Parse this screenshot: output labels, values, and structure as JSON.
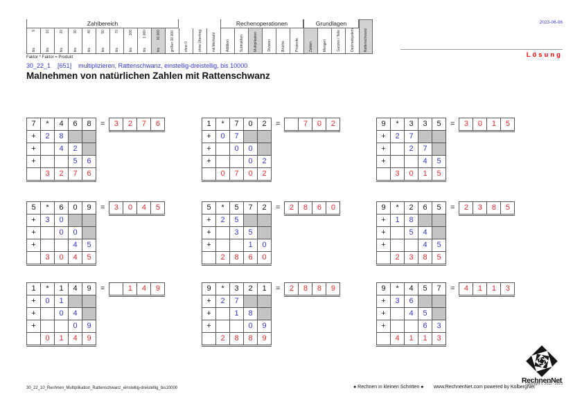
{
  "header": {
    "date": "2023-06-06",
    "solution_label": "Lösung",
    "formula_note": "Faktor * Faktor = Produkt",
    "code_line": {
      "code": "30_22_1",
      "ref": "[651]",
      "desc": "multiplizieren, Rattenschwanz, einstellig-dreistellig, bis 10000"
    },
    "title": "Malnehmen von natürlichen Zahlen mit Rattenschwanz"
  },
  "criteria": {
    "bis_label": "bis",
    "groups": [
      {
        "label": "Zahlbereich",
        "span": 11
      },
      {
        "label": "",
        "span": 3
      },
      {
        "label": "Rechenoperationen",
        "span": 6
      },
      {
        "label": "Grundlagen",
        "span": 4
      }
    ],
    "columns": [
      {
        "bis": true,
        "label": "9"
      },
      {
        "bis": true,
        "label": "10"
      },
      {
        "bis": true,
        "label": "20"
      },
      {
        "bis": true,
        "label": "30"
      },
      {
        "bis": true,
        "label": "40"
      },
      {
        "bis": true,
        "label": "50"
      },
      {
        "bis": true,
        "label": "70"
      },
      {
        "bis": true,
        "label": "100"
      },
      {
        "bis": true,
        "label": "1.000"
      },
      {
        "bis": true,
        "label": "10.000",
        "highlight": true
      },
      {
        "label": "größer 10.000"
      },
      {
        "label": "ohne 0"
      },
      {
        "label": "ohne Übertrag"
      },
      {
        "label": "mit Merkzahl"
      },
      {
        "label": "Addition"
      },
      {
        "label": "Subtraktion"
      },
      {
        "label": "Multiplikation",
        "highlight": true
      },
      {
        "label": "Division"
      },
      {
        "label": "Brüche"
      },
      {
        "label": "Prozente"
      },
      {
        "label": "Zahlen",
        "highlight": true
      },
      {
        "label": "Mengen"
      },
      {
        "label": "Ganzes / Teile"
      },
      {
        "label": "Dezimalsystem"
      },
      {
        "label": "Rattenschwanz",
        "highlight": true,
        "full": true
      }
    ]
  },
  "symbols": {
    "times": "*",
    "equals": "=",
    "plus": "+"
  },
  "problems": [
    {
      "factor": "7",
      "multiplicand": [
        "4",
        "6",
        "8"
      ],
      "partials": [
        [
          "2",
          "8"
        ],
        [
          "4",
          "2"
        ],
        [
          "5",
          "6"
        ]
      ],
      "sum": [
        "3",
        "2",
        "7",
        "6"
      ],
      "result": [
        "3",
        "2",
        "7",
        "6"
      ]
    },
    {
      "factor": "1",
      "multiplicand": [
        "7",
        "0",
        "2"
      ],
      "partials": [
        [
          "0",
          "7"
        ],
        [
          "0",
          "0"
        ],
        [
          "0",
          "2"
        ]
      ],
      "sum": [
        "0",
        "7",
        "0",
        "2"
      ],
      "result": [
        "",
        "7",
        "0",
        "2"
      ]
    },
    {
      "factor": "9",
      "multiplicand": [
        "3",
        "3",
        "5"
      ],
      "partials": [
        [
          "2",
          "7"
        ],
        [
          "2",
          "7"
        ],
        [
          "4",
          "5"
        ]
      ],
      "sum": [
        "3",
        "0",
        "1",
        "5"
      ],
      "result": [
        "3",
        "0",
        "1",
        "5"
      ]
    },
    {
      "factor": "5",
      "multiplicand": [
        "6",
        "0",
        "9"
      ],
      "partials": [
        [
          "3",
          "0"
        ],
        [
          "0",
          "0"
        ],
        [
          "4",
          "5"
        ]
      ],
      "sum": [
        "3",
        "0",
        "4",
        "5"
      ],
      "result": [
        "3",
        "0",
        "4",
        "5"
      ]
    },
    {
      "factor": "5",
      "multiplicand": [
        "5",
        "7",
        "2"
      ],
      "partials": [
        [
          "2",
          "5"
        ],
        [
          "3",
          "5"
        ],
        [
          "1",
          "0"
        ]
      ],
      "sum": [
        "2",
        "8",
        "6",
        "0"
      ],
      "result": [
        "2",
        "8",
        "6",
        "0"
      ]
    },
    {
      "factor": "9",
      "multiplicand": [
        "2",
        "6",
        "5"
      ],
      "partials": [
        [
          "1",
          "8"
        ],
        [
          "5",
          "4"
        ],
        [
          "4",
          "5"
        ]
      ],
      "sum": [
        "2",
        "3",
        "8",
        "5"
      ],
      "result": [
        "2",
        "3",
        "8",
        "5"
      ]
    },
    {
      "factor": "1",
      "multiplicand": [
        "1",
        "4",
        "9"
      ],
      "partials": [
        [
          "0",
          "1"
        ],
        [
          "0",
          "4"
        ],
        [
          "0",
          "9"
        ]
      ],
      "sum": [
        "0",
        "1",
        "4",
        "9"
      ],
      "result": [
        "",
        "1",
        "4",
        "9"
      ]
    },
    {
      "factor": "9",
      "multiplicand": [
        "3",
        "2",
        "1"
      ],
      "partials": [
        [
          "2",
          "7"
        ],
        [
          "1",
          "8"
        ],
        [
          "0",
          "9"
        ]
      ],
      "sum": [
        "2",
        "8",
        "8",
        "9"
      ],
      "result": [
        "2",
        "8",
        "8",
        "9"
      ]
    },
    {
      "factor": "9",
      "multiplicand": [
        "4",
        "5",
        "7"
      ],
      "partials": [
        [
          "3",
          "6"
        ],
        [
          "4",
          "5"
        ],
        [
          "6",
          "3"
        ]
      ],
      "sum": [
        "4",
        "1",
        "1",
        "3"
      ],
      "result": [
        "4",
        "1",
        "1",
        "3"
      ]
    }
  ],
  "footer": {
    "filename": "30_22_10_Rechnen_Multiplikation_Rattenschwanz_einstellig-dreistellig_bis10000",
    "slogan": "● Rechnen in kleinen Schritten ●",
    "site": "www.RechnenNet.com powered by KolbergNet",
    "copyright": "Copyright © 2011 - 2023",
    "logo_text": "RechnenNet"
  },
  "colors": {
    "blue": "#3333cc",
    "red": "#e02828",
    "solution_red": "#ff0000",
    "gray_cell": "#c4c4c4",
    "highlight": "#d2d2d2"
  }
}
